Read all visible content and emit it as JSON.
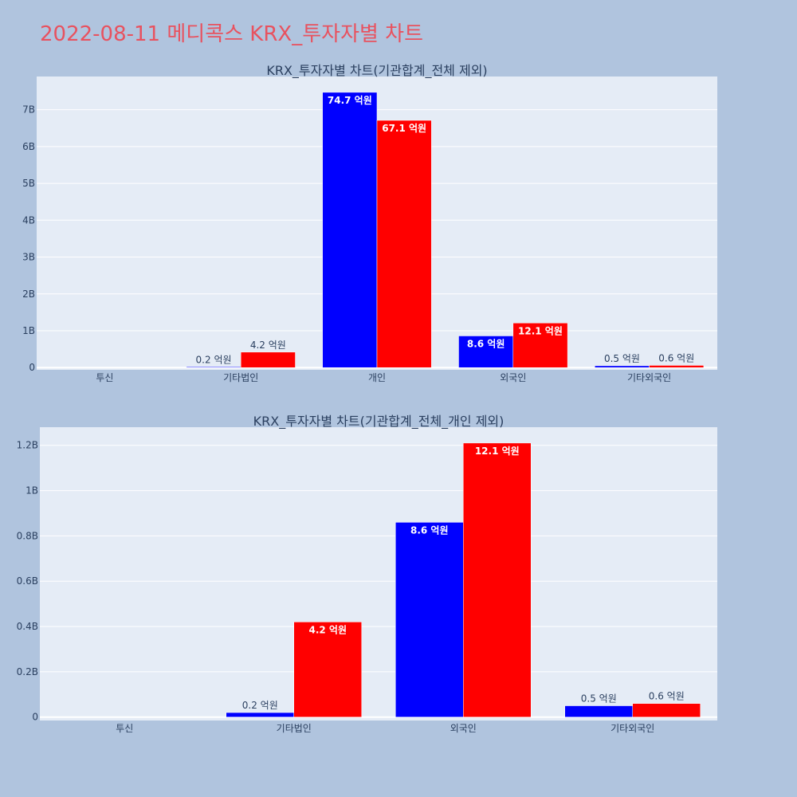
{
  "title": "2022-08-11 메디콕스 KRX_투자자별 차트",
  "colors": {
    "buy": "#0000ff",
    "sell": "#ff0000",
    "plot_bg": "#e5ecf6",
    "paper_bg": "#b0c4de",
    "title": "#e8525f"
  },
  "chart_data": [
    {
      "type": "bar",
      "title": "KRX_투자자별 차트(기관합계_전체 제외)",
      "categories": [
        "투신",
        "기타법인",
        "개인",
        "외국인",
        "기타외국인"
      ],
      "series": [
        {
          "values": [
            0,
            20000000,
            7470000000,
            860000000,
            50000000
          ],
          "labels": [
            "",
            "0.2 억원",
            "74.7 억원",
            "8.6 억원",
            "0.5 억원"
          ]
        },
        {
          "values": [
            0,
            420000000,
            6710000000,
            1210000000,
            60000000
          ],
          "labels": [
            "",
            "4.2 억원",
            "67.1 억원",
            "12.1 억원",
            "0.6 억원"
          ]
        }
      ],
      "yticks": [
        0,
        1000000000,
        2000000000,
        3000000000,
        4000000000,
        5000000000,
        6000000000,
        7000000000
      ],
      "ytick_labels": [
        "0",
        "1B",
        "2B",
        "3B",
        "4B",
        "5B",
        "6B",
        "7B"
      ],
      "ylim": [
        -60000000,
        7900000000
      ],
      "grid": true,
      "legend": "none"
    },
    {
      "type": "bar",
      "title": "KRX_투자자별 차트(기관합계_전체_개인 제외)",
      "categories": [
        "투신",
        "기타법인",
        "외국인",
        "기타외국인"
      ],
      "series": [
        {
          "values": [
            0,
            20000000,
            860000000,
            50000000
          ],
          "labels": [
            "",
            "0.2 억원",
            "8.6 억원",
            "0.5 억원"
          ]
        },
        {
          "values": [
            0,
            420000000,
            1210000000,
            60000000
          ],
          "labels": [
            "",
            "4.2 억원",
            "12.1 억원",
            "0.6 억원"
          ]
        }
      ],
      "yticks": [
        0,
        200000000,
        400000000,
        600000000,
        800000000,
        1000000000,
        1200000000
      ],
      "ytick_labels": [
        "0",
        "0.2B",
        "0.4B",
        "0.6B",
        "0.8B",
        "1B",
        "1.2B"
      ],
      "ylim": [
        -15000000,
        1280000000
      ],
      "grid": true,
      "legend": "none"
    }
  ]
}
